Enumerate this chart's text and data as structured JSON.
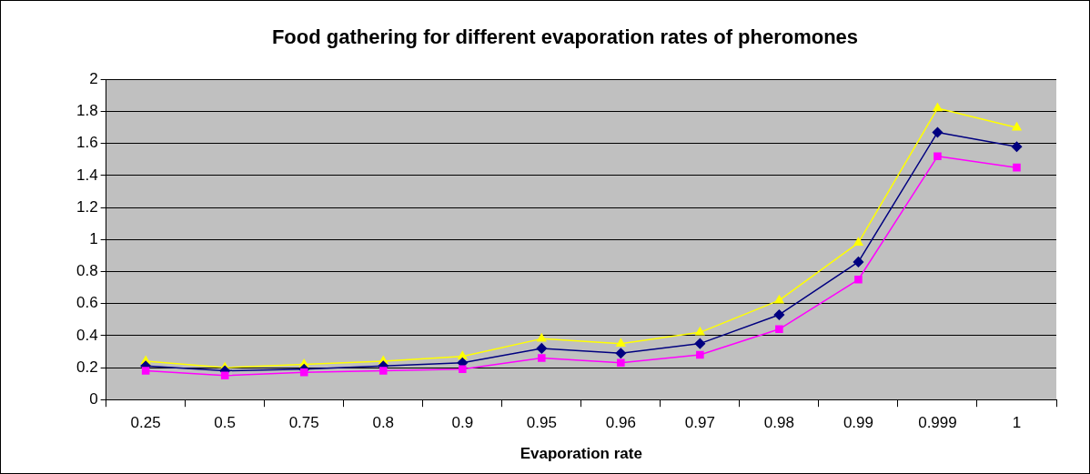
{
  "chart_data": {
    "type": "line",
    "title": "Food gathering for different evaporation rates of pheromones",
    "xlabel": "Evaporation rate",
    "categories": [
      "0.25",
      "0.5",
      "0.75",
      "0.8",
      "0.9",
      "0.95",
      "0.96",
      "0.97",
      "0.98",
      "0.99",
      "0.999",
      "1"
    ],
    "series": [
      {
        "color": "#ffff00",
        "marker": "triangle",
        "values": [
          0.24,
          0.2,
          0.22,
          0.24,
          0.27,
          0.38,
          0.35,
          0.42,
          0.62,
          0.98,
          1.82,
          1.7
        ]
      },
      {
        "color": "#000080",
        "marker": "diamond",
        "values": [
          0.21,
          0.18,
          0.19,
          0.21,
          0.23,
          0.32,
          0.29,
          0.35,
          0.53,
          0.86,
          1.67,
          1.58
        ]
      },
      {
        "color": "#ff00ff",
        "marker": "square",
        "values": [
          0.18,
          0.15,
          0.17,
          0.18,
          0.19,
          0.26,
          0.23,
          0.28,
          0.44,
          0.75,
          1.52,
          1.45
        ]
      }
    ],
    "ylim": [
      0,
      2
    ],
    "yticks": [
      0,
      0.2,
      0.4,
      0.6,
      0.8,
      1,
      1.2,
      1.4,
      1.6,
      1.8,
      2
    ],
    "grid": "y",
    "legend": false
  }
}
